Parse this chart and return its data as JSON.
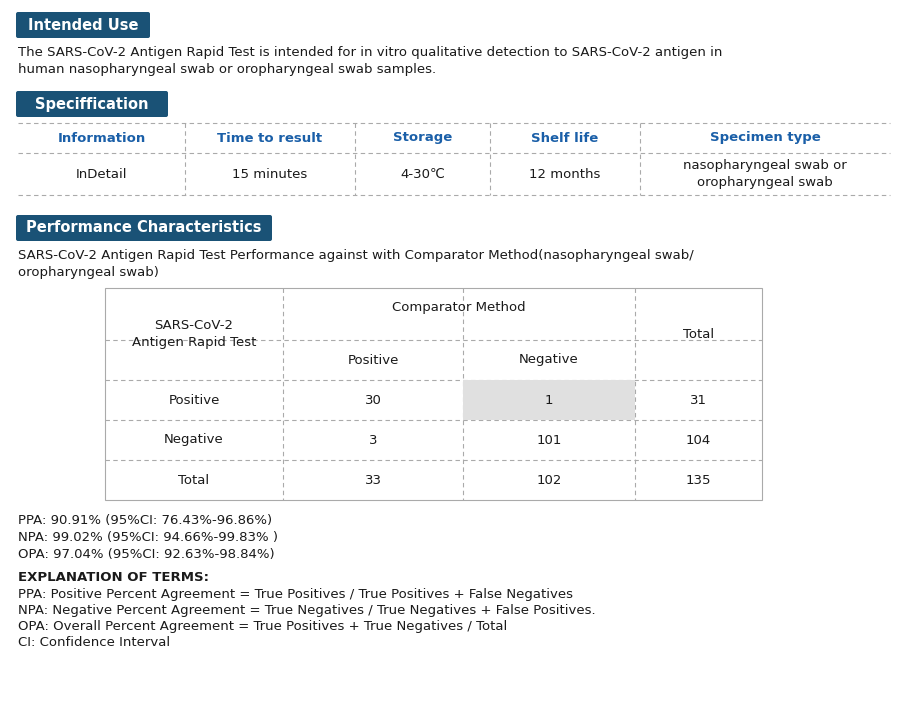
{
  "bg_color": "#ffffff",
  "header_bg": "#1a5276",
  "header_text_color": "#ffffff",
  "body_text_color": "#1a1a1a",
  "blue_text_color": "#1a5fa8",
  "dotted_color": "#aaaaaa",
  "shade_color": "#e0e0e0",
  "section1_title": "Intended Use",
  "section1_body1": "The SARS-CoV-2 Antigen Rapid Test is intended for in vitro qualitative detection to SARS-CoV-2 antigen in",
  "section1_body2": "human nasopharyngeal swab or oropharyngeal swab samples.",
  "section2_title": "Speciffication",
  "spec_headers": [
    "Information",
    "Time to result",
    "Storage",
    "Shelf life",
    "Specimen type"
  ],
  "spec_values": [
    "InDetail",
    "15 minutes",
    "4-30℃",
    "12 months",
    "nasopharyngeal swab or\noropharyngeal swab"
  ],
  "section3_title": "Performance Characteristics",
  "perf_intro1": "SARS-CoV-2 Antigen Rapid Test Performance against with Comparator Method(nasopharyngeal swab/",
  "perf_intro2": "oropharyngeal swab)",
  "stats": [
    "PPA: 90.91% (95%CI: 76.43%-96.86%)",
    "NPA: 99.02% (95%CI: 94.66%-99.83% )",
    "OPA: 97.04% (95%CI: 92.63%-98.84%)"
  ],
  "explanation_title": "EXPLANATION OF TERMS:",
  "explanation_lines": [
    "PPA: Positive Percent Agreement = True Positives / True Positives + False Negatives",
    "NPA: Negative Percent Agreement = True Negatives / True Negatives + False Positives.",
    "OPA: Overall Percent Agreement = True Positives + True Negatives / Total",
    "CI: Confidence Interval"
  ],
  "table_data": [
    [
      "Positive",
      "30",
      "1",
      "31"
    ],
    [
      "Negative",
      "3",
      "101",
      "104"
    ],
    [
      "Total",
      "33",
      "102",
      "135"
    ]
  ]
}
